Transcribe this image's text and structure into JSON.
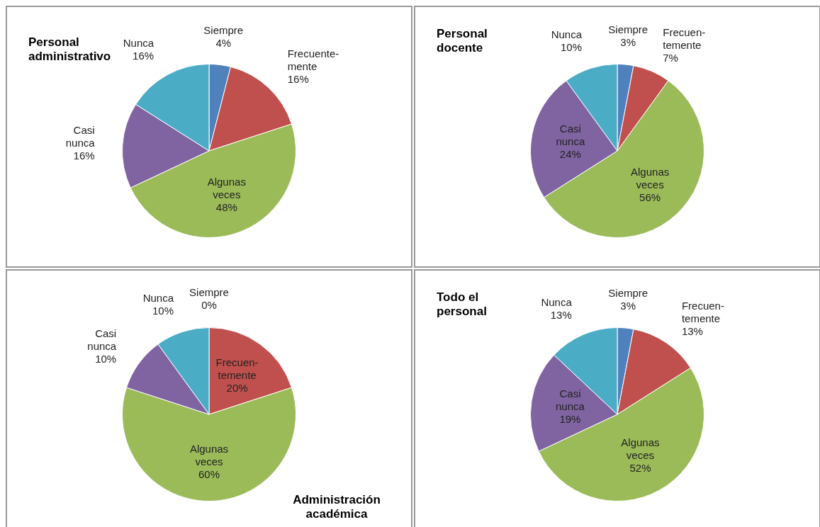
{
  "chart_data": [
    {
      "type": "pie",
      "title": "Personal administrativo",
      "categories": [
        "Siempre",
        "Frecuente-mente",
        "Algunas veces",
        "Casi nunca",
        "Nunca"
      ],
      "values": [
        4,
        16,
        48,
        16,
        16
      ],
      "value_labels": [
        "4%",
        "16%",
        "48%",
        "16%",
        "16%"
      ],
      "colors": [
        "#4f81bd",
        "#c0504d",
        "#9bbb59",
        "#8064a2",
        "#4bacc6"
      ],
      "legend": false
    },
    {
      "type": "pie",
      "title": "Personal docente",
      "categories": [
        "Siempre",
        "Frecuen-temente",
        "Algunas veces",
        "Casi nunca",
        "Nunca"
      ],
      "values": [
        3,
        7,
        56,
        24,
        10
      ],
      "value_labels": [
        "3%",
        "7%",
        "56%",
        "24%",
        "10%"
      ],
      "colors": [
        "#4f81bd",
        "#c0504d",
        "#9bbb59",
        "#8064a2",
        "#4bacc6"
      ],
      "legend": false
    },
    {
      "type": "pie",
      "title": "Administración académica",
      "categories": [
        "Siempre",
        "Frecuen-temente",
        "Algunas veces",
        "Casi nunca",
        "Nunca"
      ],
      "values": [
        0,
        20,
        60,
        10,
        10
      ],
      "value_labels": [
        "0%",
        "20%",
        "60%",
        "10%",
        "10%"
      ],
      "colors": [
        "#4f81bd",
        "#c0504d",
        "#9bbb59",
        "#8064a2",
        "#4bacc6"
      ],
      "legend": false
    },
    {
      "type": "pie",
      "title": "Todo el personal",
      "categories": [
        "Siempre",
        "Frecuen-temente",
        "Algunas veces",
        "Casi nunca",
        "Nunca"
      ],
      "values": [
        3,
        13,
        52,
        19,
        13
      ],
      "value_labels": [
        "3%",
        "13%",
        "52%",
        "19%",
        "13%"
      ],
      "colors": [
        "#4f81bd",
        "#c0504d",
        "#9bbb59",
        "#8064a2",
        "#4bacc6"
      ],
      "legend": false
    }
  ]
}
